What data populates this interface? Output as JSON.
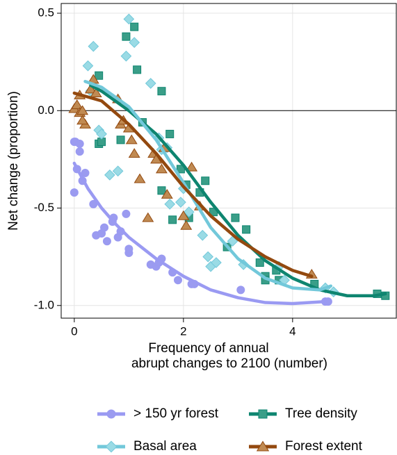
{
  "chart_data": {
    "type": "scatter",
    "ylabel": "Net change (proportion)",
    "xlabel": [
      "Frequency of annual",
      "abrupt changes to 2100 (number)"
    ],
    "xlim": [
      -0.24,
      5.9
    ],
    "ylim": [
      -1.065,
      0.55
    ],
    "xticks": [
      0,
      2,
      4
    ],
    "yticks": [
      0.5,
      {
        "value": 0,
        "label": "0.0"
      },
      {
        "value": -0.5,
        "label": "-0.5"
      },
      {
        "value": -1,
        "label": "-1.0"
      }
    ],
    "grid": true,
    "hline": 0,
    "series": [
      {
        "name": "> 150 yr forest",
        "marker": "circle",
        "color": "#9b9bf0",
        "line_color": "#9a9af2",
        "x": [
          0,
          0,
          0.02,
          0.05,
          0.1,
          0.1,
          0.15,
          0.2,
          0.35,
          0.4,
          0.5,
          0.55,
          0.6,
          0.7,
          0.72,
          0.8,
          0.85,
          0.95,
          1.0,
          1.0,
          1.4,
          1.5,
          1.55,
          1.6,
          1.8,
          1.9,
          2.15,
          2.2,
          3.05,
          4.6,
          4.65
        ],
        "values": [
          -0.42,
          -0.16,
          -0.16,
          -0.3,
          -0.17,
          -0.21,
          -0.36,
          -0.32,
          -0.48,
          -0.64,
          -0.63,
          -0.6,
          -0.67,
          -0.57,
          -0.55,
          -0.65,
          -0.62,
          -0.53,
          -0.73,
          -0.71,
          -0.79,
          -0.8,
          -0.78,
          -0.76,
          -0.83,
          -0.87,
          -0.89,
          -0.89,
          -0.92,
          -0.98,
          -0.98
        ],
        "fit": {
          "x": [
            0,
            0.25,
            0.5,
            0.75,
            1,
            1.5,
            2,
            2.5,
            3,
            3.5,
            4,
            4.6
          ],
          "values": [
            -0.27,
            -0.4,
            -0.5,
            -0.58,
            -0.65,
            -0.76,
            -0.85,
            -0.92,
            -0.96,
            -0.985,
            -0.99,
            -0.98
          ]
        }
      },
      {
        "name": "Tree density",
        "marker": "square",
        "color": "#3a9e88",
        "line_color": "#0e8570",
        "x": [
          0.45,
          0.45,
          0.5,
          0.85,
          0.95,
          1.1,
          1.15,
          1.25,
          1.6,
          1.6,
          1.75,
          1.8,
          1.95,
          2.05,
          2.1,
          2.4,
          2.3,
          2.55,
          2.8,
          2.95,
          3.15,
          3.4,
          3.5,
          3.5,
          3.7,
          3.75,
          4.4,
          5.55,
          5.7
        ],
        "values": [
          0.18,
          -0.17,
          -0.16,
          -0.15,
          0.38,
          0.43,
          0.21,
          -0.06,
          0.1,
          -0.41,
          -0.12,
          -0.56,
          -0.3,
          -0.38,
          -0.55,
          -0.36,
          -0.42,
          -0.52,
          -0.7,
          -0.55,
          -0.61,
          -0.78,
          -0.85,
          -0.87,
          -0.82,
          -0.87,
          -0.89,
          -0.94,
          -0.95
        ],
        "fit": {
          "x": [
            0.3,
            0.5,
            1,
            1.5,
            2,
            2.5,
            3,
            3.5,
            4,
            4.5,
            5,
            5.5,
            5.7
          ],
          "values": [
            0.13,
            0.1,
            0,
            -0.12,
            -0.28,
            -0.47,
            -0.64,
            -0.77,
            -0.86,
            -0.92,
            -0.95,
            -0.95,
            -0.94
          ]
        }
      },
      {
        "name": "Basal area",
        "marker": "diamond",
        "color": "#9adbe5",
        "line_color": "#72c8da",
        "x": [
          0.25,
          0.35,
          0.3,
          0.45,
          0.5,
          0.65,
          0.8,
          0.95,
          1.0,
          1.1,
          1.4,
          1.55,
          1.6,
          1.7,
          1.75,
          1.95,
          2.0,
          2.1,
          2.35,
          2.45,
          2.5,
          2.6,
          2.9,
          3.1,
          3.75,
          3.85,
          4.6,
          4.75
        ],
        "values": [
          0.23,
          0.33,
          0.1,
          -0.1,
          -0.12,
          -0.33,
          -0.31,
          0.28,
          0.47,
          0.35,
          0.14,
          -0.14,
          -0.2,
          -0.19,
          -0.48,
          -0.47,
          -0.4,
          -0.52,
          -0.64,
          -0.75,
          -0.8,
          -0.78,
          -0.67,
          -0.79,
          -0.8,
          -0.87,
          -0.91,
          -0.93
        ],
        "fit": {
          "x": [
            0.2,
            0.5,
            1,
            1.5,
            2,
            2.5,
            3,
            3.5,
            4,
            4.5,
            4.7
          ],
          "values": [
            0.15,
            0.12,
            0.02,
            -0.15,
            -0.37,
            -0.6,
            -0.76,
            -0.86,
            -0.91,
            -0.92,
            -0.9
          ]
        }
      },
      {
        "name": "Forest extent",
        "marker": "triangle",
        "color": "#c08a52",
        "line_color": "#93490f",
        "x": [
          0,
          0.05,
          0.1,
          0.1,
          0.15,
          0.2,
          0.3,
          0.35,
          0.4,
          0.8,
          0.85,
          0.9,
          1.0,
          1.05,
          1.1,
          1.2,
          1.35,
          1.45,
          1.5,
          1.6,
          1.65,
          1.7,
          2.0,
          2.05,
          2.15,
          2.3,
          4.35,
          0.15
        ],
        "values": [
          0.01,
          0.03,
          0.08,
          -0.01,
          0,
          -0.07,
          0.11,
          0.16,
          0.09,
          0.06,
          -0.07,
          -0.05,
          -0.09,
          -0.15,
          -0.22,
          -0.35,
          -0.55,
          -0.22,
          -0.25,
          -0.3,
          -0.19,
          -0.43,
          -0.54,
          -0.59,
          -0.29,
          -0.49,
          -0.84,
          -0.05
        ],
        "fit": {
          "x": [
            0,
            0.5,
            1,
            1.5,
            2,
            2.5,
            3,
            3.5,
            4,
            4.35
          ],
          "values": [
            0.09,
            0.05,
            -0.07,
            -0.22,
            -0.39,
            -0.54,
            -0.66,
            -0.75,
            -0.82,
            -0.85
          ]
        }
      }
    ]
  }
}
